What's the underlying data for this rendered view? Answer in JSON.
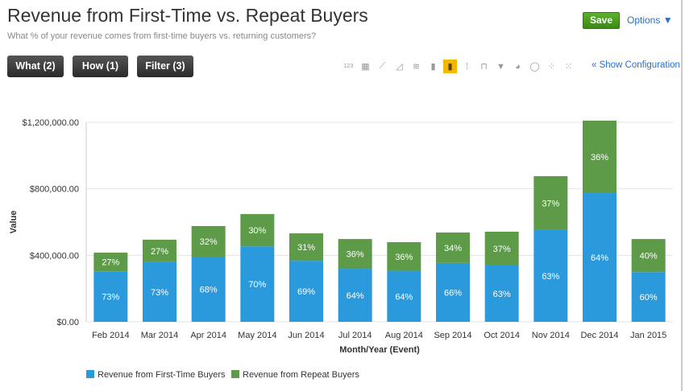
{
  "header": {
    "title": "Revenue from First-Time vs. Repeat Buyers",
    "subtitle": "What % of your revenue comes from first-time buyers vs. returning customers?",
    "save_label": "Save",
    "options_label": "Options ▼"
  },
  "toolbar": {
    "what_label": "What (2)",
    "how_label": "How (1)",
    "filter_label": "Filter (3)",
    "show_config_label": "« Show Configuration",
    "chart_types": [
      {
        "name": "number-icon",
        "glyph": "123"
      },
      {
        "name": "table-icon",
        "glyph": "▦"
      },
      {
        "name": "line-icon",
        "glyph": "⟋"
      },
      {
        "name": "area-icon",
        "glyph": "◿"
      },
      {
        "name": "stacked-area-icon",
        "glyph": "≋"
      },
      {
        "name": "bar-icon",
        "glyph": "▮"
      },
      {
        "name": "stacked-bar-icon",
        "glyph": "▮"
      },
      {
        "name": "grouped-bar-icon",
        "glyph": "⁞"
      },
      {
        "name": "step-icon",
        "glyph": "⊓"
      },
      {
        "name": "funnel-icon",
        "glyph": "▼"
      },
      {
        "name": "pie-icon",
        "glyph": "◕"
      },
      {
        "name": "donut-icon",
        "glyph": "◯"
      },
      {
        "name": "scatter-icon",
        "glyph": "⁘"
      },
      {
        "name": "bubble-icon",
        "glyph": "⁙"
      }
    ],
    "selected_chart_type": 6
  },
  "colors": {
    "first": "#2a9add",
    "repeat": "#5e9b48"
  },
  "chart_data": {
    "type": "bar",
    "stacked": true,
    "xlabel": "Month/Year (Event)",
    "ylabel": "Value",
    "ylim": [
      0,
      1200000
    ],
    "yticks": [
      {
        "v": 0,
        "label": "$0.00"
      },
      {
        "v": 400000,
        "label": "$400,000.00"
      },
      {
        "v": 800000,
        "label": "$800,000.00"
      },
      {
        "v": 1200000,
        "label": "$1,200,000.00"
      }
    ],
    "categories": [
      "Feb 2014",
      "Mar 2014",
      "Apr 2014",
      "May 2014",
      "Jun 2014",
      "Jul 2014",
      "Aug 2014",
      "Sep 2014",
      "Oct 2014",
      "Nov 2014",
      "Dec 2014",
      "Jan 2015"
    ],
    "series": [
      {
        "name": "Revenue from First-Time Buyers",
        "values": [
          304000,
          360000,
          392000,
          454000,
          367000,
          319000,
          307000,
          354000,
          341000,
          552000,
          774000,
          299000
        ],
        "labels": [
          "73%",
          "73%",
          "68%",
          "70%",
          "69%",
          "64%",
          "64%",
          "66%",
          "63%",
          "63%",
          "64%",
          "60%"
        ]
      },
      {
        "name": "Revenue from Repeat Buyers",
        "values": [
          112000,
          134000,
          184000,
          194000,
          165000,
          179000,
          172000,
          183000,
          201000,
          324000,
          436000,
          199000
        ],
        "labels": [
          "27%",
          "27%",
          "32%",
          "30%",
          "31%",
          "36%",
          "36%",
          "34%",
          "37%",
          "37%",
          "36%",
          "40%"
        ]
      }
    ],
    "legend": "bottom-left"
  }
}
